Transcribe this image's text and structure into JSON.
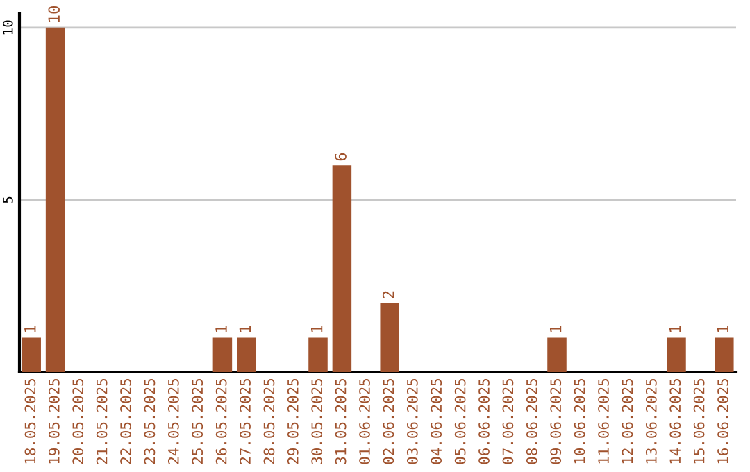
{
  "chart_data": {
    "type": "bar",
    "categories": [
      "18.05.2025",
      "19.05.2025",
      "20.05.2025",
      "21.05.2025",
      "22.05.2025",
      "23.05.2025",
      "24.05.2025",
      "25.05.2025",
      "26.05.2025",
      "27.05.2025",
      "28.05.2025",
      "29.05.2025",
      "30.05.2025",
      "31.05.2025",
      "01.06.2025",
      "02.06.2025",
      "03.06.2025",
      "04.06.2025",
      "05.06.2025",
      "06.06.2025",
      "07.06.2025",
      "08.06.2025",
      "09.06.2025",
      "10.06.2025",
      "11.06.2025",
      "12.06.2025",
      "13.06.2025",
      "14.06.2025",
      "15.06.2025",
      "16.06.2025"
    ],
    "values": [
      1,
      10,
      0,
      0,
      0,
      0,
      0,
      0,
      1,
      1,
      0,
      0,
      1,
      6,
      0,
      2,
      0,
      0,
      0,
      0,
      0,
      0,
      1,
      0,
      0,
      0,
      0,
      1,
      0,
      1
    ],
    "value_labels": [
      "1",
      "10",
      null,
      null,
      null,
      null,
      null,
      null,
      "1",
      "1",
      null,
      null,
      "1",
      "6",
      null,
      "2",
      null,
      null,
      null,
      null,
      null,
      null,
      "1",
      null,
      null,
      null,
      null,
      "1",
      null,
      "1"
    ],
    "color": "#a0522d",
    "ylim": [
      0,
      10.4
    ],
    "yticks": [
      5,
      10
    ],
    "grid": "y"
  }
}
